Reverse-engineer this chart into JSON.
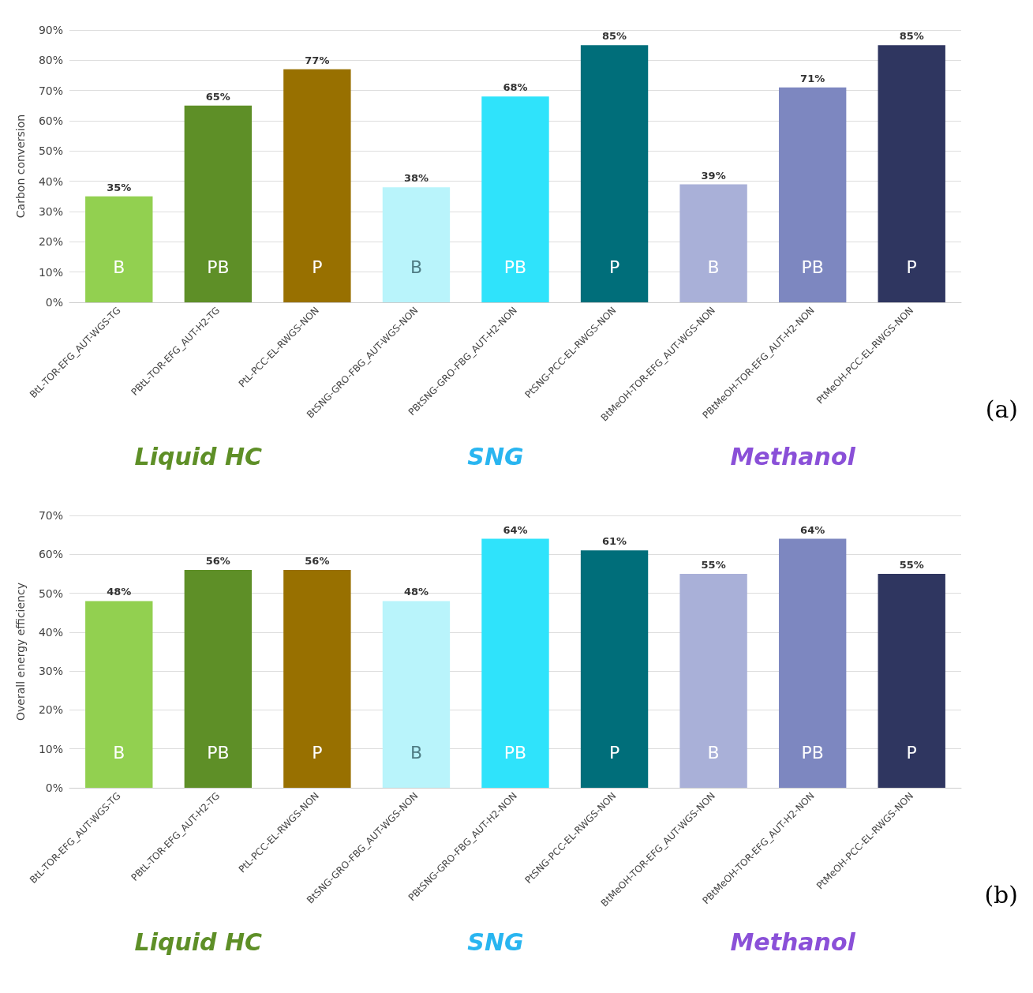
{
  "chart_data": [
    {
      "type": "bar",
      "ylabel": "Carbon conversion",
      "categories": [
        "BtL-TOR-EFG_AUT-WGS-TG",
        "PBtL-TOR-EFG_AUT-H2-TG",
        "PtL-PCC-EL-RWGS-NON",
        "BtSNG-GRO-FBG_AUT-WGS-NON",
        "PBtSNG-GRO-FBG_AUT-H2-NON",
        "PtSNG-PCC-EL-RWGS-NON",
        "BtMeOH-TOR-EFG_AUT-WGS-NON",
        "PBtMeOH-TOR-EFG_AUT-H2-NON",
        "PtMeOH-PCC-EL-RWGS-NON"
      ],
      "values": [
        35,
        65,
        77,
        38,
        68,
        85,
        39,
        71,
        85
      ],
      "value_labels": [
        "35%",
        "65%",
        "77%",
        "38%",
        "68%",
        "85%",
        "39%",
        "71%",
        "85%"
      ],
      "colors": [
        "#92d050",
        "#5e8f27",
        "#987000",
        "#b9f4fb",
        "#2fe3fb",
        "#006e7a",
        "#a9b0d8",
        "#7d87c0",
        "#2f3660"
      ],
      "ylim": [
        0,
        90
      ],
      "yticks": [
        {
          "value": 0,
          "label": "0%"
        },
        {
          "value": 10,
          "label": "10%"
        },
        {
          "value": 20,
          "label": "20%"
        },
        {
          "value": 30,
          "label": "30%"
        },
        {
          "value": 40,
          "label": "40%"
        },
        {
          "value": 50,
          "label": "50%"
        },
        {
          "value": 60,
          "label": "60%"
        },
        {
          "value": 70,
          "label": "70%"
        },
        {
          "value": 80,
          "label": "80%"
        },
        {
          "value": 90,
          "label": "90%"
        }
      ],
      "grid": "y",
      "annotations": [
        "B",
        "PB",
        "P",
        "B",
        "PB",
        "P",
        "B",
        "PB",
        "P",
        "Liquid HC",
        "SNG",
        "Methanol",
        "(a)"
      ]
    },
    {
      "type": "bar",
      "ylabel": "Overall energy efficiency",
      "categories": [
        "BtL-TOR-EFG_AUT-WGS-TG",
        "PBtL-TOR-EFG_AUT-H2-TG",
        "PtL-PCC-EL-RWGS-NON",
        "BtSNG-GRO-FBG_AUT-WGS-NON",
        "PBtSNG-GRO-FBG_AUT-H2-NON",
        "PtSNG-PCC-EL-RWGS-NON",
        "BtMeOH-TOR-EFG_AUT-WGS-NON",
        "PBtMeOH-TOR-EFG_AUT-H2-NON",
        "PtMeOH-PCC-EL-RWGS-NON"
      ],
      "values": [
        48,
        56,
        56,
        48,
        64,
        61,
        55,
        64,
        55
      ],
      "value_labels": [
        "48%",
        "56%",
        "56%",
        "48%",
        "64%",
        "61%",
        "55%",
        "64%",
        "55%"
      ],
      "colors": [
        "#92d050",
        "#5e8f27",
        "#987000",
        "#b9f4fb",
        "#2fe3fb",
        "#006e7a",
        "#a9b0d8",
        "#7d87c0",
        "#2f3660"
      ],
      "ylim": [
        0,
        70
      ],
      "yticks": [
        {
          "value": 0,
          "label": "0%"
        },
        {
          "value": 10,
          "label": "10%"
        },
        {
          "value": 20,
          "label": "20%"
        },
        {
          "value": 30,
          "label": "30%"
        },
        {
          "value": 40,
          "label": "40%"
        },
        {
          "value": 50,
          "label": "50%"
        },
        {
          "value": 60,
          "label": "60%"
        },
        {
          "value": 70,
          "label": "70%"
        }
      ],
      "grid": "y",
      "annotations": [
        "B",
        "PB",
        "P",
        "B",
        "PB",
        "P",
        "B",
        "PB",
        "P",
        "Liquid HC",
        "SNG",
        "Methanol",
        "(b)"
      ]
    }
  ]
}
